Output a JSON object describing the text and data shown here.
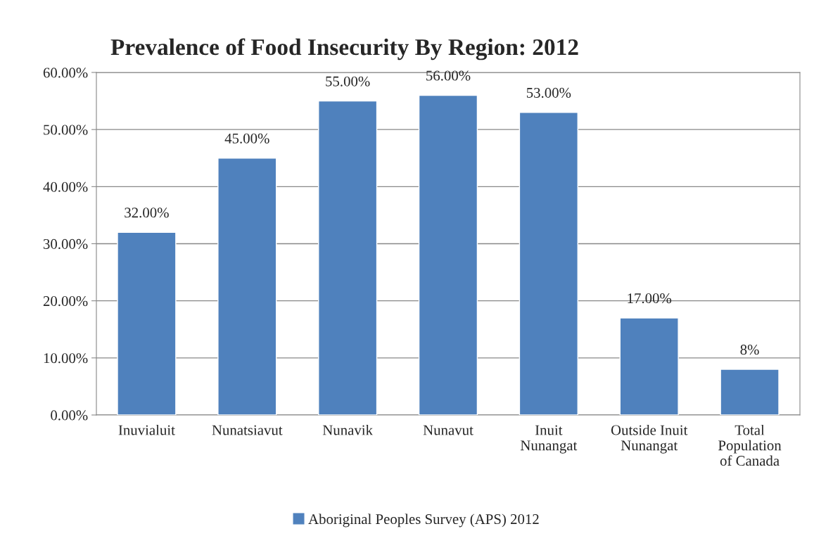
{
  "chart_data": {
    "type": "bar",
    "title": "Prevalence of Food Insecurity By Region: 2012",
    "categories": [
      "Inuvialuit",
      "Nunatsiavut",
      "Nunavik",
      "Nunavut",
      "Inuit\nNunangat",
      "Outside Inuit\nNunangat",
      "Total\nPopulation\nof Canada"
    ],
    "series": [
      {
        "name": "Aboriginal Peoples Survey (APS) 2012",
        "color": "#4f81bd",
        "values": [
          32,
          45,
          55,
          56,
          53,
          17,
          8
        ],
        "value_labels": [
          "32.00%",
          "45.00%",
          "55.00%",
          "56.00%",
          "53.00%",
          "17.00%",
          "8%"
        ]
      }
    ],
    "ylim": [
      0,
      60
    ],
    "yticks": [
      {
        "value": 0,
        "label": "0.00%"
      },
      {
        "value": 10,
        "label": "10.00%"
      },
      {
        "value": 20,
        "label": "20.00%"
      },
      {
        "value": 30,
        "label": "30.00%"
      },
      {
        "value": 40,
        "label": "40.00%"
      },
      {
        "value": 50,
        "label": "50.00%"
      },
      {
        "value": 60,
        "label": "60.00%"
      }
    ],
    "grid": "y",
    "legend": "bottom"
  }
}
